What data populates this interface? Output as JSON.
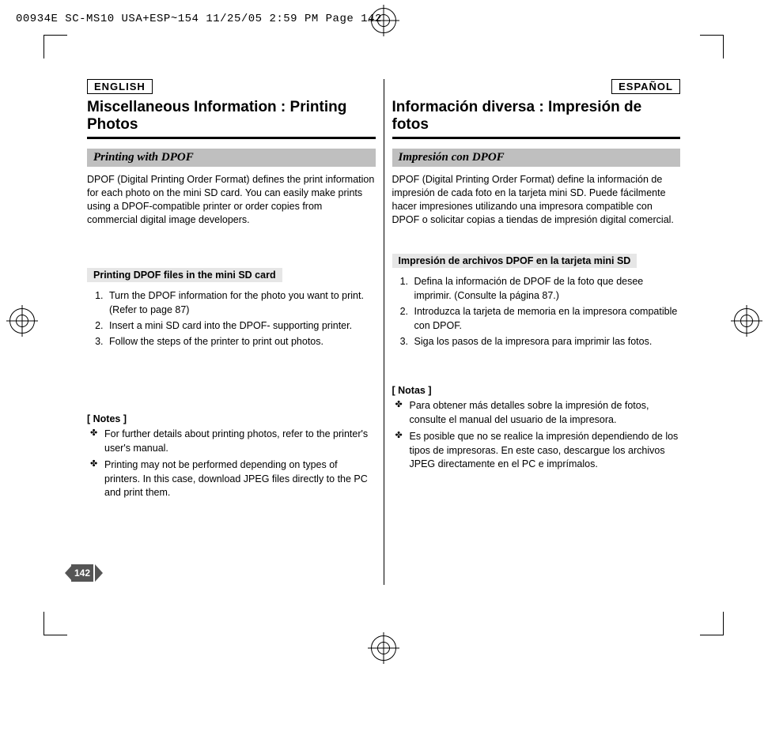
{
  "print_header": "00934E SC-MS10 USA+ESP~154  11/25/05 2:59 PM  Page 142",
  "page_number": "142",
  "left": {
    "lang": "ENGLISH",
    "title": "Miscellaneous Information : Printing Photos",
    "section_bar": "Printing with DPOF",
    "intro": "DPOF (Digital Printing Order Format) defines the print information for each photo on the mini SD card. You can easily make prints using a DPOF-compatible printer or order copies from commercial digital image developers.",
    "sub_bar": "Printing DPOF files in the mini SD card",
    "steps": [
      "Turn the DPOF information for the photo you want to print. (Refer to page 87)",
      "Insert a mini SD card into the DPOF- supporting printer.",
      "Follow the steps of the printer to print out photos."
    ],
    "notes_head": "[ Notes ]",
    "notes": [
      "For further details about printing photos, refer to the printer's user's manual.",
      "Printing may not be performed depending on types of printers. In this case, download JPEG files directly to the PC and print them."
    ]
  },
  "right": {
    "lang": "ESPAÑOL",
    "title": "Información diversa : Impresión de fotos",
    "section_bar": "Impresión con DPOF",
    "intro": "DPOF (Digital Printing Order Format) define la información de impresión de cada foto en la tarjeta mini SD. Puede fácilmente hacer impresiones utilizando una impresora compatible con DPOF o solicitar copias a tiendas de impresión digital comercial.",
    "sub_bar": "Impresión de archivos DPOF en la tarjeta mini SD",
    "steps": [
      "Defina la información de DPOF de la foto que desee imprimir. (Consulte la página 87.)",
      "Introduzca la tarjeta de memoria en la impresora compatible con DPOF.",
      "Siga los pasos de la impresora para imprimir las fotos."
    ],
    "notes_head": "[ Notas ]",
    "notes": [
      "Para obtener más detalles sobre la impresión de fotos, consulte el manual del usuario de la impresora.",
      "Es posible que no se realice la impresión dependiendo de los tipos de impresoras. En este caso, descargue los archivos JPEG directamente en el PC e imprímalos."
    ]
  }
}
